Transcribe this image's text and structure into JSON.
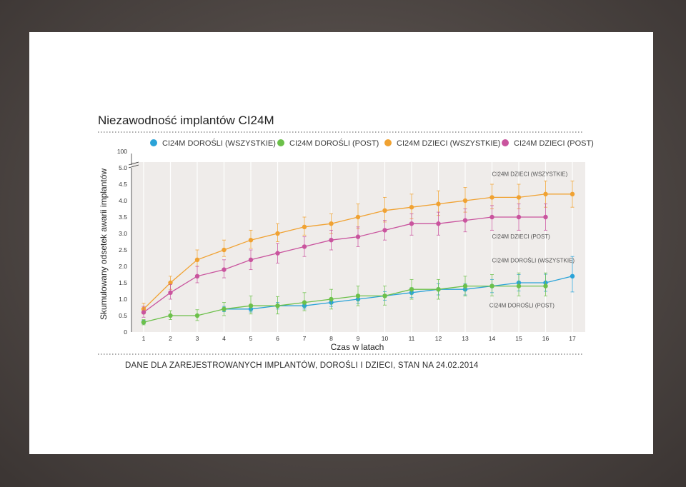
{
  "chart_data": {
    "type": "line",
    "title": "Niezawodność implantów CI24M",
    "xlabel": "Czas w latach",
    "ylabel": "Skumulowany odsetek awarii implantów",
    "x": [
      1,
      2,
      3,
      4,
      5,
      6,
      7,
      8,
      9,
      10,
      11,
      12,
      13,
      14,
      15,
      16,
      17
    ],
    "xlim": [
      0.9,
      17.1
    ],
    "ylim": [
      0,
      5.25
    ],
    "y_break": {
      "upper_label": "100",
      "upper_value": 100
    },
    "y_ticks": [
      "0",
      "0.5",
      "1.0",
      "1.5",
      "2.0",
      "2.5",
      "3.0",
      "3.5",
      "4.0",
      "4.5",
      "5.0"
    ],
    "y_tick_values": [
      0,
      0.5,
      1.0,
      1.5,
      2.0,
      2.5,
      3.0,
      3.5,
      4.0,
      4.5,
      5.0
    ],
    "grid": "vertical",
    "legend_position": "top",
    "series": [
      {
        "name": "CI24M DOROŚLI (WSZYSTKIE)",
        "color": "#2aa3d8",
        "values": [
          0.3,
          null,
          null,
          0.7,
          0.7,
          0.8,
          0.8,
          0.9,
          1.0,
          1.1,
          1.2,
          1.3,
          1.3,
          1.4,
          1.5,
          1.5,
          1.7
        ],
        "err_low": [
          0.25,
          null,
          null,
          0.62,
          0.61,
          0.7,
          0.7,
          0.78,
          0.87,
          0.97,
          1.05,
          1.13,
          1.13,
          1.2,
          1.25,
          1.24,
          1.22
        ],
        "err_high": [
          0.36,
          null,
          null,
          0.78,
          0.8,
          0.9,
          0.9,
          1.02,
          1.13,
          1.23,
          1.35,
          1.47,
          1.47,
          1.6,
          1.75,
          1.76,
          2.3
        ]
      },
      {
        "name": "CI24M DOROŚLI (POST)",
        "color": "#6cc04a",
        "values": [
          0.3,
          0.5,
          0.5,
          0.7,
          0.8,
          0.8,
          0.9,
          1.0,
          1.1,
          1.1,
          1.3,
          1.3,
          1.4,
          1.4,
          1.4,
          1.4,
          null
        ],
        "err_low": [
          0.22,
          0.38,
          0.35,
          0.5,
          0.55,
          0.55,
          0.65,
          0.7,
          0.8,
          0.82,
          1.0,
          1.0,
          1.1,
          1.1,
          1.1,
          1.1,
          null
        ],
        "err_high": [
          0.38,
          0.65,
          0.68,
          0.9,
          1.1,
          1.08,
          1.2,
          1.3,
          1.4,
          1.4,
          1.6,
          1.6,
          1.7,
          1.75,
          1.8,
          1.8,
          null
        ]
      },
      {
        "name": "CI24M DZIECI (WSZYSTKIE)",
        "color": "#f0a232",
        "values": [
          0.7,
          1.5,
          2.2,
          2.5,
          2.8,
          3.0,
          3.2,
          3.3,
          3.5,
          3.7,
          3.8,
          3.9,
          4.0,
          4.1,
          4.1,
          4.2,
          4.2
        ],
        "err_low": [
          0.55,
          1.3,
          2.0,
          2.3,
          2.55,
          2.75,
          2.95,
          3.0,
          3.15,
          3.35,
          3.45,
          3.55,
          3.65,
          3.75,
          3.75,
          3.8,
          3.8
        ],
        "err_high": [
          0.88,
          1.7,
          2.5,
          2.8,
          3.1,
          3.3,
          3.5,
          3.6,
          3.9,
          4.1,
          4.2,
          4.3,
          4.4,
          4.5,
          4.5,
          4.6,
          4.6
        ]
      },
      {
        "name": "CI24M DZIECI (POST)",
        "color": "#c9549e",
        "values": [
          0.6,
          1.2,
          1.7,
          1.9,
          2.2,
          2.4,
          2.6,
          2.8,
          2.9,
          3.1,
          3.3,
          3.3,
          3.4,
          3.5,
          3.5,
          3.5,
          null
        ],
        "err_low": [
          0.45,
          1.0,
          1.5,
          1.65,
          1.9,
          2.1,
          2.3,
          2.5,
          2.6,
          2.8,
          2.95,
          2.95,
          3.05,
          3.1,
          3.1,
          3.1,
          null
        ],
        "err_high": [
          0.78,
          1.45,
          2.0,
          2.2,
          2.5,
          2.7,
          2.9,
          3.1,
          3.2,
          3.4,
          3.6,
          3.65,
          3.75,
          3.85,
          3.9,
          3.9,
          null
        ]
      }
    ],
    "annotations": [
      {
        "text": "CI24M DZIECI (WSZYSTKIE)",
        "x": 14,
        "y": 4.75
      },
      {
        "text": "CI24M DZIECI (POST)",
        "x": 14,
        "y": 2.85
      },
      {
        "text": "CI24M DOROŚLI (WSZYSTKIE)",
        "x": 14,
        "y": 2.12
      },
      {
        "text": "CI24M DOROŚLI (POST)",
        "x": 13.9,
        "y": 0.75
      }
    ],
    "footnote": "DANE DLA ZAREJESTROWANYCH IMPLANTÓW, DOROŚLI I DZIECI, STAN NA 24.02.2014"
  }
}
